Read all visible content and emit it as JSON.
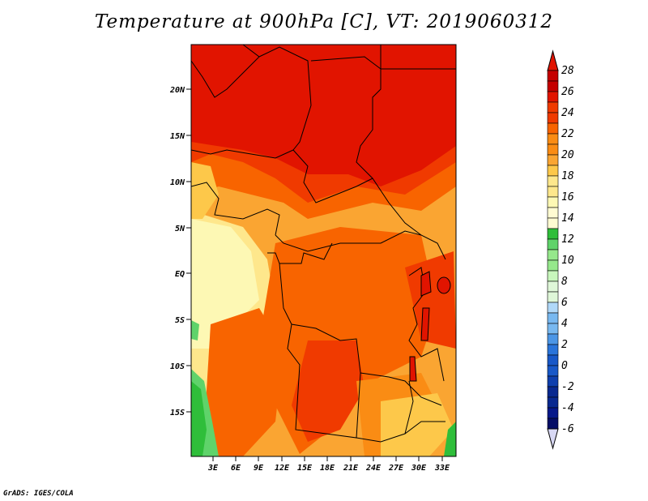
{
  "title": "Temperature at 900hPa [C], VT: 2019060312",
  "credit": "GrADS: IGES/COLA",
  "map": {
    "lat_labels": [
      "20N",
      "15N",
      "10N",
      "5N",
      "EQ",
      "5S",
      "10S",
      "15S"
    ],
    "lon_labels": [
      "3E",
      "6E",
      "9E",
      "12E",
      "15E",
      "18E",
      "21E",
      "24E",
      "27E",
      "30E",
      "33E"
    ]
  },
  "colorbar": {
    "labels": [
      "28",
      "26",
      "24",
      "22",
      "20",
      "18",
      "16",
      "14",
      "12",
      "10",
      "8",
      "6",
      "4",
      "2",
      "0",
      "-2",
      "-4",
      "-6"
    ],
    "colors": [
      "#f0d46c",
      "#c50000",
      "#e11400",
      "#f03a00",
      "#f86400",
      "#fa8c14",
      "#faa532",
      "#fdc84a",
      "#fee78c",
      "#fdf8b4",
      "#2fbe3a",
      "#5fd36a",
      "#96e88c",
      "#c8f7bc",
      "#b0d8f8",
      "#78b8f0",
      "#4c96e6",
      "#2a74da",
      "#1858c8",
      "#0e3fae",
      "#082890",
      "#040d66",
      "#d8d8f4"
    ]
  }
}
